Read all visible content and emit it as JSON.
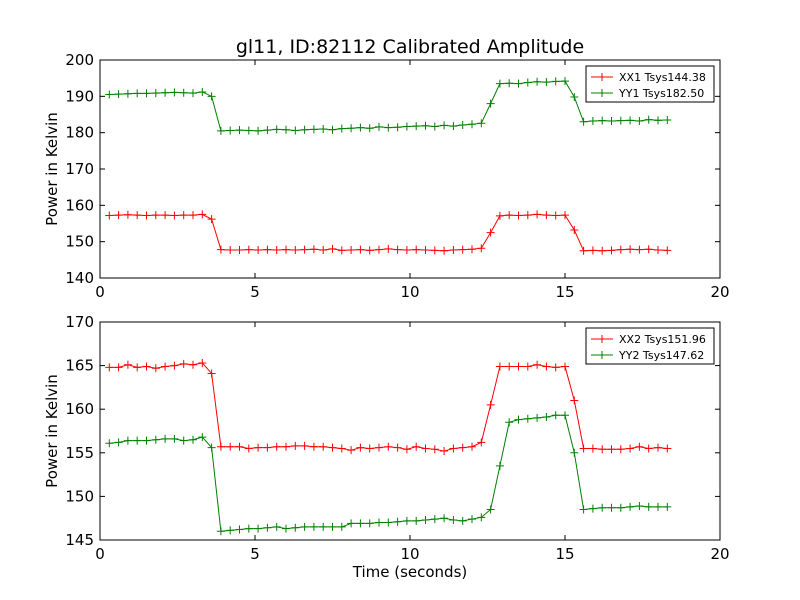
{
  "figure": {
    "title": "gl11, ID:82112 Calibrated Amplitude",
    "xlabel": "Time (seconds)"
  },
  "chart_data": [
    {
      "type": "line",
      "ylabel": "Power in Kelvin",
      "xlim": [
        0,
        20
      ],
      "ylim": [
        140,
        200
      ],
      "xticks": [
        "0",
        "5",
        "10",
        "15",
        "20"
      ],
      "yticks": [
        "140",
        "150",
        "160",
        "170",
        "180",
        "190",
        "200"
      ],
      "legend_position": "top-right",
      "grid": false,
      "x": [
        0.3,
        0.6,
        0.9,
        1.2,
        1.5,
        1.8,
        2.1,
        2.4,
        2.7,
        3.0,
        3.3,
        3.6,
        3.9,
        4.2,
        4.5,
        4.8,
        5.1,
        5.4,
        5.7,
        6.0,
        6.3,
        6.6,
        6.9,
        7.2,
        7.5,
        7.8,
        8.1,
        8.4,
        8.7,
        9.0,
        9.3,
        9.6,
        9.9,
        10.2,
        10.5,
        10.8,
        11.1,
        11.4,
        11.7,
        12.0,
        12.3,
        12.6,
        12.9,
        13.2,
        13.5,
        13.8,
        14.1,
        14.4,
        14.7,
        15.0,
        15.3,
        15.6,
        15.9,
        16.2,
        16.5,
        16.8,
        17.1,
        17.4,
        17.7,
        18.0,
        18.3
      ],
      "series": [
        {
          "name": "XX1 Tsys144.38",
          "color": "#ff0000",
          "values": [
            157.2,
            157.3,
            157.4,
            157.3,
            157.2,
            157.3,
            157.3,
            157.2,
            157.3,
            157.3,
            157.5,
            156.2,
            147.8,
            147.7,
            147.7,
            147.8,
            147.7,
            147.8,
            147.7,
            147.8,
            147.7,
            147.8,
            147.9,
            147.7,
            148.0,
            147.6,
            147.7,
            147.8,
            147.6,
            147.8,
            148.0,
            147.8,
            147.7,
            147.8,
            147.7,
            147.6,
            147.5,
            147.7,
            147.8,
            147.9,
            148.2,
            152.5,
            157.1,
            157.3,
            157.2,
            157.3,
            157.5,
            157.3,
            157.2,
            157.3,
            153.2,
            147.5,
            147.6,
            147.5,
            147.6,
            147.8,
            147.9,
            147.8,
            147.9,
            147.7,
            147.6
          ]
        },
        {
          "name": "YY1 Tsys182.50",
          "color": "#008000",
          "values": [
            190.5,
            190.6,
            190.7,
            190.8,
            190.8,
            190.9,
            191.0,
            191.1,
            191.0,
            190.9,
            191.2,
            190.0,
            180.5,
            180.6,
            180.7,
            180.6,
            180.5,
            180.7,
            180.9,
            180.8,
            180.6,
            180.8,
            180.9,
            181.0,
            180.8,
            181.1,
            181.2,
            181.4,
            181.2,
            181.6,
            181.4,
            181.5,
            181.7,
            181.8,
            181.9,
            181.7,
            182.0,
            181.8,
            182.1,
            182.3,
            182.6,
            188.0,
            193.5,
            193.6,
            193.5,
            193.8,
            194.0,
            193.9,
            194.1,
            194.2,
            189.8,
            183.0,
            183.2,
            183.3,
            183.2,
            183.3,
            183.4,
            183.2,
            183.6,
            183.4,
            183.5
          ]
        }
      ]
    },
    {
      "type": "line",
      "ylabel": "Power in Kelvin",
      "xlim": [
        0,
        20
      ],
      "ylim": [
        145,
        170
      ],
      "xticks": [
        "0",
        "5",
        "10",
        "15",
        "20"
      ],
      "yticks": [
        "145",
        "150",
        "155",
        "160",
        "165",
        "170"
      ],
      "legend_position": "top-right",
      "grid": false,
      "x": [
        0.3,
        0.6,
        0.9,
        1.2,
        1.5,
        1.8,
        2.1,
        2.4,
        2.7,
        3.0,
        3.3,
        3.6,
        3.9,
        4.2,
        4.5,
        4.8,
        5.1,
        5.4,
        5.7,
        6.0,
        6.3,
        6.6,
        6.9,
        7.2,
        7.5,
        7.8,
        8.1,
        8.4,
        8.7,
        9.0,
        9.3,
        9.6,
        9.9,
        10.2,
        10.5,
        10.8,
        11.1,
        11.4,
        11.7,
        12.0,
        12.3,
        12.6,
        12.9,
        13.2,
        13.5,
        13.8,
        14.1,
        14.4,
        14.7,
        15.0,
        15.3,
        15.6,
        15.9,
        16.2,
        16.5,
        16.8,
        17.1,
        17.4,
        17.7,
        18.0,
        18.3
      ],
      "series": [
        {
          "name": "XX2 Tsys151.96",
          "color": "#ff0000",
          "values": [
            164.8,
            164.8,
            165.1,
            164.8,
            164.9,
            164.7,
            164.9,
            165.0,
            165.2,
            165.1,
            165.3,
            164.1,
            155.7,
            155.7,
            155.7,
            155.5,
            155.6,
            155.6,
            155.7,
            155.7,
            155.8,
            155.8,
            155.7,
            155.7,
            155.6,
            155.5,
            155.3,
            155.6,
            155.5,
            155.6,
            155.7,
            155.6,
            155.4,
            155.7,
            155.5,
            155.4,
            155.2,
            155.5,
            155.6,
            155.7,
            156.2,
            160.5,
            164.9,
            164.9,
            164.9,
            164.9,
            165.1,
            164.9,
            164.8,
            164.9,
            161.0,
            155.5,
            155.5,
            155.4,
            155.4,
            155.4,
            155.5,
            155.7,
            155.5,
            155.6,
            155.5
          ]
        },
        {
          "name": "YY2 Tsys147.62",
          "color": "#008000",
          "values": [
            156.1,
            156.2,
            156.4,
            156.4,
            156.4,
            156.5,
            156.6,
            156.6,
            156.4,
            156.5,
            156.8,
            155.6,
            146.0,
            146.1,
            146.2,
            146.3,
            146.3,
            146.4,
            146.5,
            146.3,
            146.4,
            146.5,
            146.5,
            146.5,
            146.5,
            146.5,
            146.9,
            146.9,
            146.9,
            147.0,
            147.0,
            147.1,
            147.2,
            147.2,
            147.3,
            147.4,
            147.5,
            147.3,
            147.2,
            147.4,
            147.6,
            148.5,
            153.5,
            158.5,
            158.8,
            158.9,
            159.0,
            159.1,
            159.3,
            159.3,
            155.0,
            148.5,
            148.6,
            148.7,
            148.7,
            148.7,
            148.8,
            148.9,
            148.8,
            148.8,
            148.8
          ]
        }
      ]
    }
  ]
}
